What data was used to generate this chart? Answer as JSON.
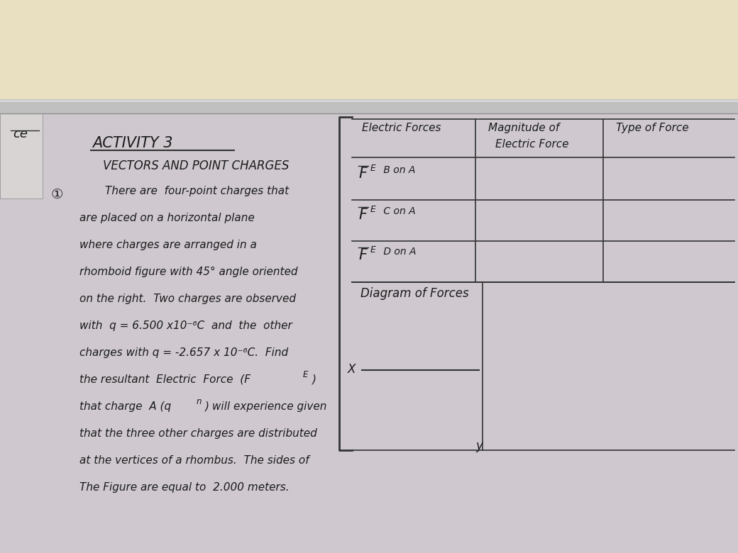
{
  "ceiling_color": "#e8e0c0",
  "rail_color": "#b8b8b8",
  "board_color": "#d8d5d8",
  "board_color2": "#ccc8cc",
  "line_color": "#333333",
  "text_color": "#1a1a1a",
  "title": "ACTIVITY 3",
  "subtitle": "VECTORS AND POINT CHARGES",
  "body_lines": [
    "There are  four-point charges that",
    "are placed on a horizontal plane",
    "where charges are arranged in a",
    "rhomboid figure with 45° angle oriented",
    "on the right.  Two charges are observed",
    "with  q = 6.500 x10⁻⁶C  and  the  other",
    "charges with q = -2.657 x 10⁻⁶C.  Find",
    "the resultant  Electric  Force  (F_E)",
    "that charge A (q_n) will experience given",
    "that the three other charges are distributed",
    "at the vertices of a rhombus.  The sides of",
    "The Figure are equal to  2.000 meters."
  ],
  "table_header_col1": "Electric Forces",
  "table_header_col2_line1": "Magnitude of",
  "table_header_col2_line2": "Electric Force",
  "table_header_col3": "Type of Force",
  "table_rows": [
    "B on A",
    "C on A",
    "D on A"
  ],
  "diagram_label": "Diagram of Forces",
  "x_label": "X",
  "y_label": "y"
}
